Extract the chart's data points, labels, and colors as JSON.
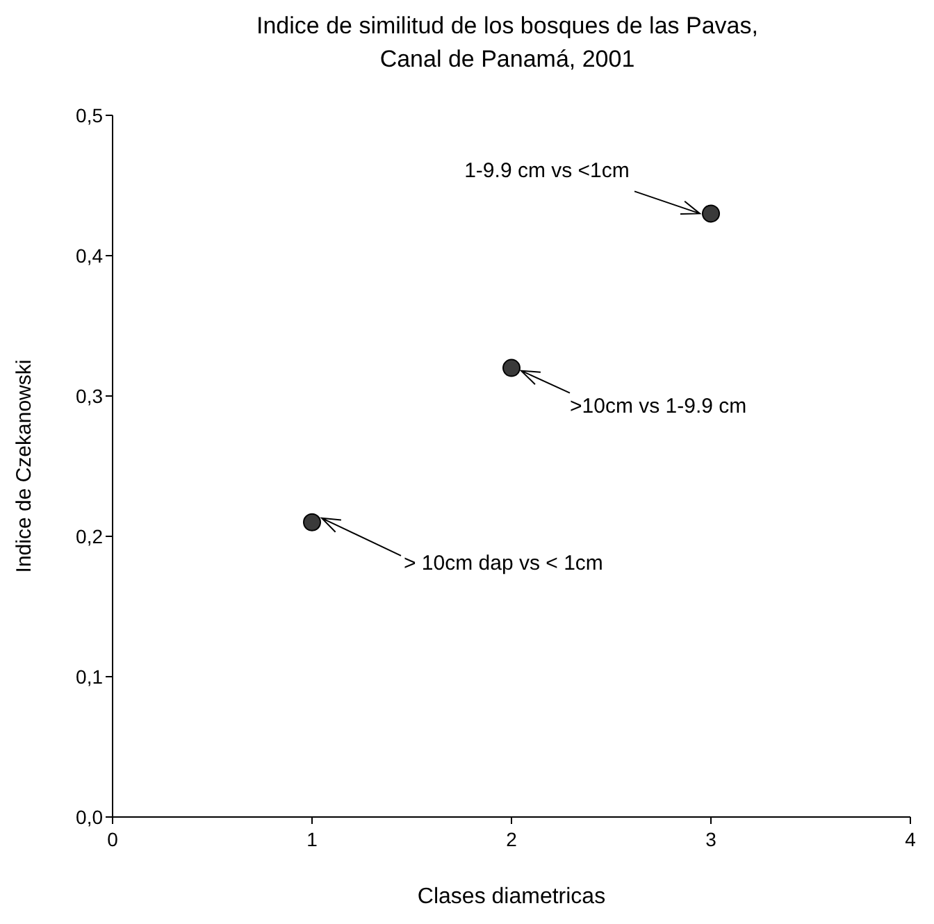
{
  "chart_data": {
    "type": "scatter",
    "title": "Indice de similitud de los bosques de las Pavas, Canal de Panamá, 2001",
    "xlabel": "Clases diametricas",
    "ylabel": "Indice de Czekanowski",
    "x": [
      1,
      2,
      3
    ],
    "values": [
      0.21,
      0.32,
      0.43
    ],
    "color": "#3a3a3a",
    "marker": "circle",
    "grid": false,
    "legend": false,
    "xlim": [
      0,
      4
    ],
    "xticks": [
      0,
      1,
      2,
      3,
      4
    ],
    "ylim": [
      0,
      0.5
    ],
    "yticks": [
      {
        "value": 0,
        "label": "0,0"
      },
      {
        "value": 0.1,
        "label": "0,1"
      },
      {
        "value": 0.2,
        "label": "0,2"
      },
      {
        "value": 0.3,
        "label": "0,3"
      },
      {
        "value": 0.4,
        "label": "0,4"
      },
      {
        "value": 0.5,
        "label": "0,5"
      }
    ],
    "annotations": [
      {
        "text": "> 10cm dap vs < 1cm",
        "x": 1,
        "y": 0.21
      },
      {
        "text": ">10cm vs 1-9.9 cm",
        "x": 2,
        "y": 0.32
      },
      {
        "text": "1-9.9 cm vs <1cm",
        "x": 3,
        "y": 0.43
      }
    ]
  }
}
